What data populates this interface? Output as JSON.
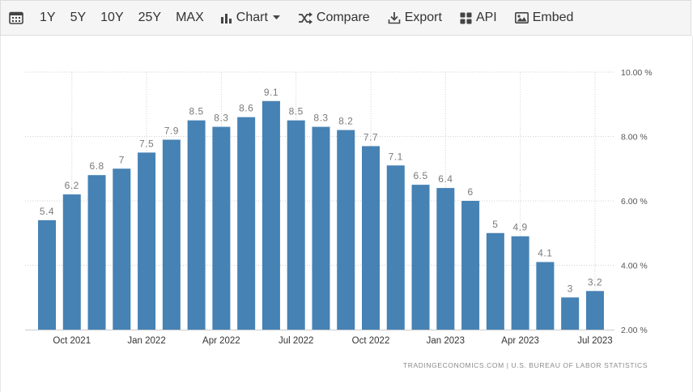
{
  "toolbar": {
    "ranges": [
      "1Y",
      "5Y",
      "10Y",
      "25Y",
      "MAX"
    ],
    "chart_label": "Chart",
    "compare_label": "Compare",
    "export_label": "Export",
    "api_label": "API",
    "embed_label": "Embed"
  },
  "credit": "TRADINGECONOMICS.COM  |  U.S. BUREAU OF LABOR STATISTICS",
  "colors": {
    "bar": "#4682b4",
    "grid": "#d0d0d0",
    "label": "#7a7a7a"
  },
  "chart_data": {
    "type": "bar",
    "categories": [
      "Sep 2021",
      "Oct 2021",
      "Nov 2021",
      "Dec 2021",
      "Jan 2022",
      "Feb 2022",
      "Mar 2022",
      "Apr 2022",
      "May 2022",
      "Jun 2022",
      "Jul 2022",
      "Aug 2022",
      "Sep 2022",
      "Oct 2022",
      "Nov 2022",
      "Dec 2022",
      "Jan 2023",
      "Feb 2023",
      "Mar 2023",
      "Apr 2023",
      "May 2023",
      "Jun 2023",
      "Jul 2023"
    ],
    "values": [
      5.4,
      6.2,
      6.8,
      7,
      7.5,
      7.9,
      8.5,
      8.3,
      8.6,
      9.1,
      8.5,
      8.3,
      8.2,
      7.7,
      7.1,
      6.5,
      6.4,
      6,
      5,
      4.9,
      4.1,
      3,
      3.2
    ],
    "data_labels": [
      "5.4",
      "6.2",
      "6.8",
      "7",
      "7.5",
      "7.9",
      "8.5",
      "8.3",
      "8.6",
      "9.1",
      "8.5",
      "8.3",
      "8.2",
      "7.7",
      "7.1",
      "6.5",
      "6.4",
      "6",
      "5",
      "4.9",
      "4.1",
      "3",
      "3.2"
    ],
    "x_tick_labels": [
      "Oct 2021",
      "Jan 2022",
      "Apr 2022",
      "Jul 2022",
      "Oct 2022",
      "Jan 2023",
      "Apr 2023",
      "Jul 2023"
    ],
    "x_tick_categories": [
      1,
      4,
      7,
      10,
      13,
      16,
      19,
      22
    ],
    "y_ticks": [
      2,
      4,
      6,
      8,
      10
    ],
    "y_tick_labels": [
      "2.00 %",
      "4.00 %",
      "6.00 %",
      "8.00 %",
      "10.00 %"
    ],
    "ylim": [
      2,
      10
    ],
    "grid": true,
    "y_axis_position": "right"
  }
}
